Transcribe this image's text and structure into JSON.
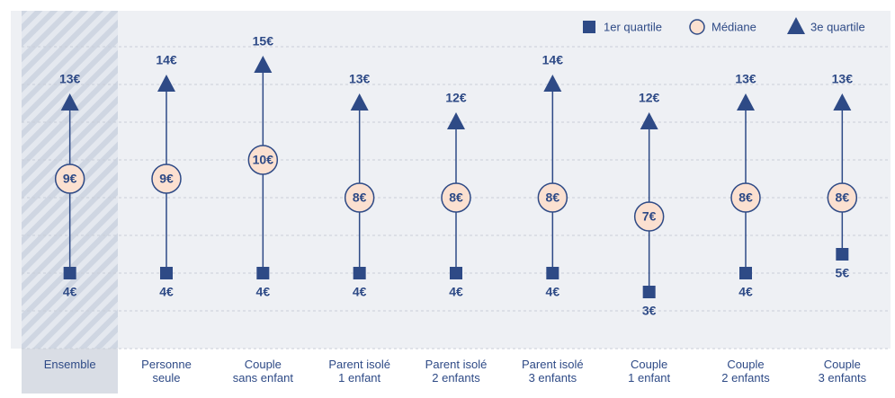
{
  "chart_data": {
    "type": "range",
    "categories": [
      "Ensemble",
      "Personne\nseule",
      "Couple\nsans enfant",
      "Parent isolé\n1 enfant",
      "Parent isolé\n2 enfants",
      "Parent isolé\n3 enfants",
      "Couple\n1 enfant",
      "Couple\n2 enfants",
      "Couple\n3 enfants"
    ],
    "series": [
      {
        "name": "1er quartile",
        "color": "#2e4a86",
        "values": [
          4,
          4,
          4,
          4,
          4,
          4,
          3,
          4,
          5
        ],
        "value_labels": [
          "4€",
          "4€",
          "4€",
          "4€",
          "4€",
          "4€",
          "3€",
          "4€",
          "5€"
        ]
      },
      {
        "name": "Médiane",
        "color": "#fbe0d0",
        "values": [
          9,
          9,
          10,
          8,
          8,
          8,
          7,
          8,
          8
        ],
        "value_labels": [
          "9€",
          "9€",
          "10€",
          "8€",
          "8€",
          "8€",
          "7€",
          "8€",
          "8€"
        ]
      },
      {
        "name": "3e quartile",
        "color": "#2e4a86",
        "values": [
          13,
          14,
          15,
          13,
          12,
          14,
          12,
          13,
          13
        ],
        "value_labels": [
          "13€",
          "14€",
          "15€",
          "13€",
          "12€",
          "14€",
          "12€",
          "13€",
          "13€"
        ]
      }
    ],
    "ylim": [
      0,
      16
    ],
    "yticks": [
      0,
      2,
      4,
      6,
      8,
      10,
      12,
      14,
      16
    ],
    "grid": true,
    "legend": "top-right"
  }
}
